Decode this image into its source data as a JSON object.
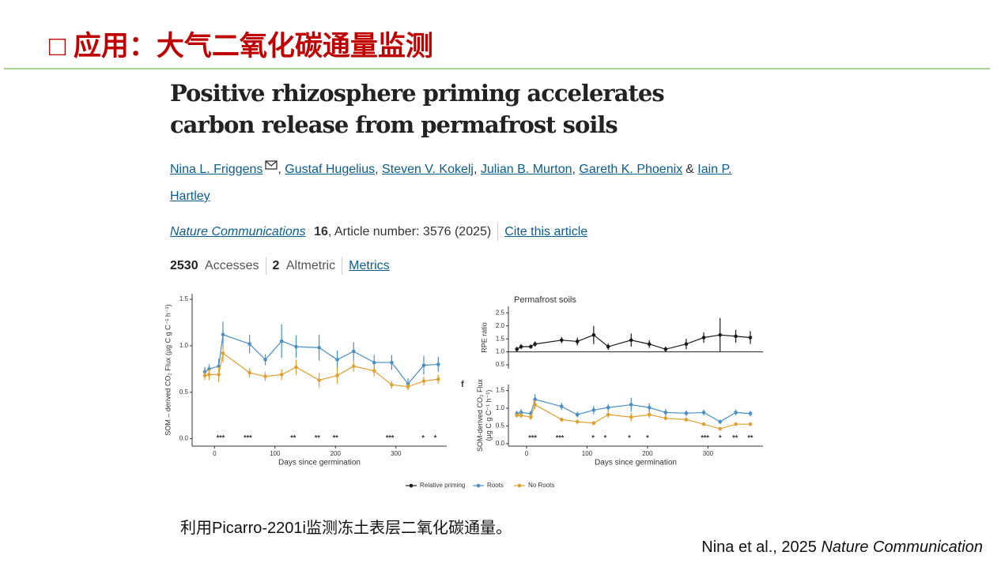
{
  "slide": {
    "title": "□ 应用：大气二氧化碳通量监测",
    "caption": "利用Picarro-2201i监测冻土表层二氧化碳通量。",
    "citation": {
      "authors": "Nina et al., 2025",
      "journal": "Nature Communication"
    }
  },
  "article": {
    "title": "Positive rhizosphere priming accelerates carbon release from permafrost soils",
    "authors": [
      "Nina L. Friggens",
      "Gustaf Hugelius",
      "Steven V. Kokelj",
      "Julian B. Murton",
      "Gareth K. Phoenix",
      "Iain P. Hartley"
    ],
    "separator": ",",
    "conjunction": "&",
    "journal": "Nature Communications",
    "volume": "16",
    "details": ", Article number: 3576 (2025)",
    "cite": "Cite this article",
    "accesses": "2530",
    "accesses_label": "Accesses",
    "altmetric": "2",
    "altmetric_label": "Altmetric",
    "metrics": "Metrics"
  },
  "chart_data": [
    {
      "type": "line",
      "xlabel": "Days since germination",
      "ylabel": [
        "SOM – derived CO₂ Flux (µg C g C⁻¹ h⁻¹)"
      ],
      "x": [
        -16,
        -9,
        7,
        14,
        58,
        84,
        111,
        135,
        173,
        203,
        230,
        264,
        293,
        320,
        346,
        370
      ],
      "xlim": [
        -37,
        384
      ],
      "xticks": [
        0,
        100,
        200,
        300
      ],
      "ylim": [
        -0.08,
        1.56
      ],
      "yticks": [
        {
          "value": 0,
          "label": "0.0"
        },
        {
          "value": 0.5,
          "label": "0.5"
        },
        {
          "value": 1,
          "label": "1.0"
        },
        {
          "value": 1.5,
          "label": "1.5"
        }
      ],
      "series": [
        {
          "name": "Roots",
          "color": "#4a8fc4",
          "values": [
            0.72,
            0.75,
            0.78,
            1.12,
            1.02,
            0.85,
            1.05,
            0.99,
            0.98,
            0.85,
            0.94,
            0.82,
            0.82,
            0.59,
            0.79,
            0.8
          ],
          "errors": [
            0.05,
            0.05,
            0.08,
            0.14,
            0.1,
            0.06,
            0.18,
            0.12,
            0.14,
            0.1,
            0.1,
            0.08,
            0.08,
            0.06,
            0.1,
            0.08
          ]
        },
        {
          "name": "No Roots",
          "color": "#dfa030",
          "values": [
            0.68,
            0.69,
            0.69,
            0.92,
            0.71,
            0.67,
            0.69,
            0.77,
            0.63,
            0.68,
            0.78,
            0.73,
            0.58,
            0.56,
            0.62,
            0.64
          ],
          "errors": [
            0.05,
            0.06,
            0.08,
            0.1,
            0.05,
            0.05,
            0.06,
            0.08,
            0.08,
            0.09,
            0.06,
            0.06,
            0.04,
            0.04,
            0.05,
            0.05
          ]
        }
      ],
      "annotations": [
        {
          "text": "***",
          "x": 10
        },
        {
          "text": "***",
          "x": 55
        },
        {
          "text": "**",
          "x": 130
        },
        {
          "text": "**",
          "x": 170
        },
        {
          "text": "**",
          "x": 200
        },
        {
          "text": "***",
          "x": 290
        },
        {
          "text": "*",
          "x": 345
        },
        {
          "text": "*",
          "x": 365
        }
      ]
    },
    {
      "type": "line",
      "title": "Permafrost soils",
      "ylabel": [
        "RPE ratio"
      ],
      "x": [
        -16,
        -9,
        7,
        14,
        58,
        84,
        111,
        135,
        173,
        203,
        230,
        264,
        293,
        320,
        346,
        370
      ],
      "xlim": [
        -30,
        391
      ],
      "ylim": [
        0.35,
        2.75
      ],
      "hline": 1,
      "yticks": [
        {
          "value": 0.5,
          "label": "0.5"
        },
        {
          "value": 1,
          "label": "1.0"
        },
        {
          "value": 1.5,
          "label": "1.5"
        },
        {
          "value": 2,
          "label": "2.0"
        },
        {
          "value": 2.5,
          "label": "2.5"
        }
      ],
      "series": [
        {
          "name": "Relative priming",
          "color": "#1a1a1a",
          "values": [
            1.1,
            1.2,
            1.2,
            1.3,
            1.45,
            1.4,
            1.65,
            1.2,
            1.45,
            1.3,
            1.1,
            1.3,
            1.55,
            1.65,
            1.6,
            1.55
          ],
          "errors": [
            0.1,
            0.1,
            0.08,
            0.1,
            0.12,
            0.15,
            0.35,
            0.12,
            0.25,
            0.15,
            0.1,
            0.2,
            0.2,
            0.65,
            0.25,
            0.25
          ]
        }
      ]
    },
    {
      "type": "line",
      "panel": "f",
      "xlabel": "Days since germination",
      "ylabel": [
        "SOM-derived CO₂ Flux",
        "(µg C g C⁻¹ h⁻¹)"
      ],
      "x": [
        -16,
        -9,
        7,
        14,
        58,
        84,
        111,
        135,
        173,
        203,
        230,
        264,
        293,
        320,
        346,
        370
      ],
      "xlim": [
        -30,
        391
      ],
      "xticks": [
        0,
        100,
        200,
        300
      ],
      "ylim": [
        -0.07,
        1.67
      ],
      "yticks": [
        {
          "value": 0,
          "label": "0.0"
        },
        {
          "value": 0.5,
          "label": "0.5"
        },
        {
          "value": 1,
          "label": "1.0"
        },
        {
          "value": 1.5,
          "label": "1.5"
        }
      ],
      "series": [
        {
          "color": "#4a8fc4",
          "values": [
            0.85,
            0.88,
            0.85,
            1.25,
            1.05,
            0.82,
            0.95,
            1.02,
            1.1,
            1.02,
            0.88,
            0.86,
            0.88,
            0.62,
            0.88,
            0.85
          ],
          "errors": [
            0.08,
            0.1,
            0.08,
            0.15,
            0.1,
            0.08,
            0.12,
            0.1,
            0.2,
            0.12,
            0.1,
            0.08,
            0.08,
            0.06,
            0.08,
            0.08
          ]
        },
        {
          "color": "#dfa030",
          "values": [
            0.8,
            0.8,
            0.75,
            1.1,
            0.68,
            0.62,
            0.58,
            0.82,
            0.75,
            0.82,
            0.72,
            0.68,
            0.55,
            0.42,
            0.55,
            0.55
          ],
          "errors": [
            0.06,
            0.08,
            0.08,
            0.12,
            0.06,
            0.06,
            0.06,
            0.1,
            0.12,
            0.1,
            0.06,
            0.06,
            0.05,
            0.04,
            0.05,
            0.05
          ]
        }
      ],
      "annotations": [
        {
          "text": "***",
          "x": 10
        },
        {
          "text": "***",
          "x": 55
        },
        {
          "text": "*",
          "x": 110
        },
        {
          "text": "*",
          "x": 130
        },
        {
          "text": "*",
          "x": 170
        },
        {
          "text": "*",
          "x": 200
        },
        {
          "text": "***",
          "x": 295
        },
        {
          "text": "*",
          "x": 320
        },
        {
          "text": "**",
          "x": 345
        },
        {
          "text": "**",
          "x": 370
        }
      ]
    }
  ]
}
